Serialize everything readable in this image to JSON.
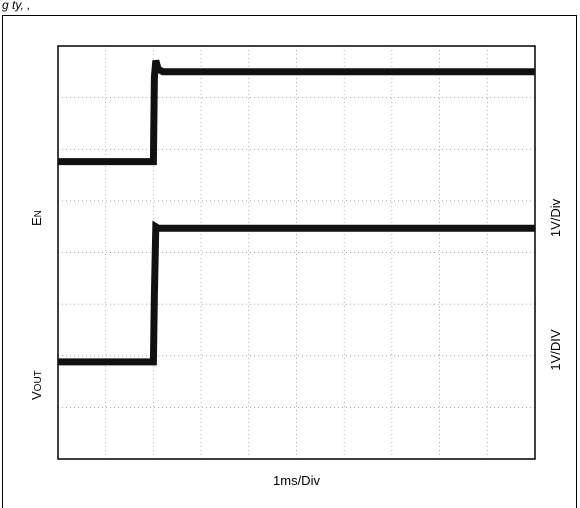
{
  "caption": "g                 ty,                ,",
  "chart_data": {
    "type": "line",
    "title": "",
    "xlabel": "1ms/Div",
    "x_divisions": 10,
    "y_divisions": 8,
    "grid": true,
    "series": [
      {
        "name": "EN",
        "label_main": "E",
        "label_sub": "N",
        "scale_label": "1V/Div",
        "x": [
          0,
          2.0,
          2.02,
          2.05,
          2.1,
          2.2,
          2.4,
          10
        ],
        "y": [
          5.76,
          5.76,
          7.4,
          7.72,
          7.55,
          7.5,
          7.5,
          7.5
        ]
      },
      {
        "name": "VOUT",
        "label_main": "V",
        "label_sub": "OUT",
        "scale_label": "1V/DIV",
        "x": [
          0,
          2.0,
          2.02,
          2.05,
          2.1,
          10
        ],
        "y": [
          1.88,
          1.88,
          3.2,
          4.5,
          4.47,
          4.47
        ]
      }
    ],
    "xlim": [
      0,
      10
    ],
    "ylim": [
      0,
      8
    ]
  }
}
